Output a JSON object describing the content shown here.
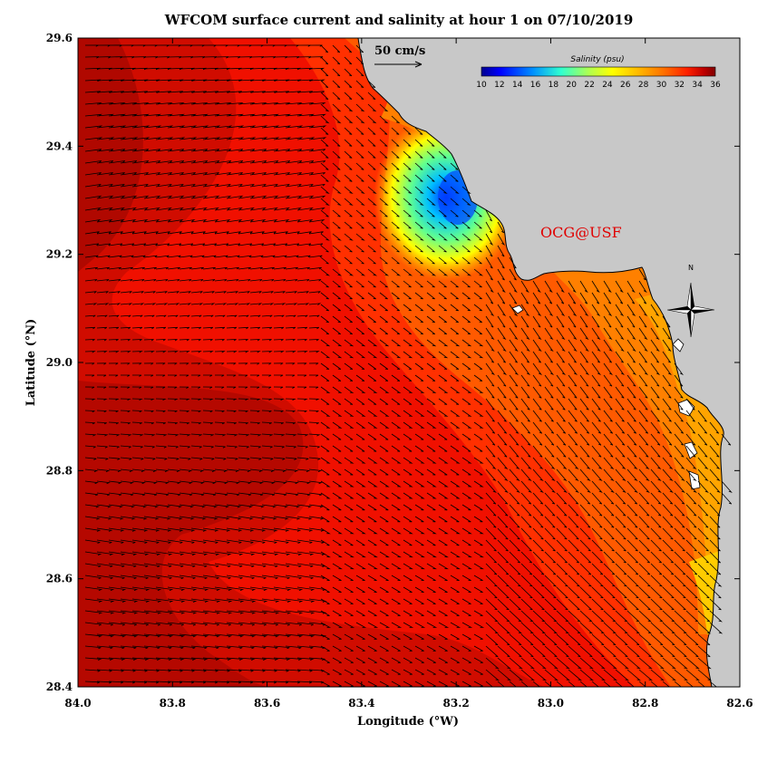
{
  "map": {
    "title": "WFCOM surface current and salinity at hour 1 on 07/10/2019",
    "xlabel": "Longitude (°W)",
    "ylabel": "Latitude (°N)",
    "x_ticks": [
      "84.0",
      "83.8",
      "83.6",
      "83.4",
      "83.2",
      "83.0",
      "82.8",
      "82.6"
    ],
    "y_ticks": [
      "29.6",
      "29.4",
      "29.2",
      "29.0",
      "28.8",
      "28.6",
      "28.4"
    ],
    "lon_range": [
      84.0,
      82.6
    ],
    "lat_range": [
      28.4,
      29.6
    ],
    "scale_vector_label": "50 cm/s",
    "credit": "OCG@USF",
    "credit_color": "#e00000",
    "north_label": "N",
    "land_color": "#c8c8c8",
    "colorbar": {
      "title": "Salinity (psu)",
      "ticks": [
        "10",
        "12",
        "14",
        "16",
        "18",
        "20",
        "22",
        "24",
        "26",
        "28",
        "30",
        "32",
        "34",
        "36"
      ],
      "range": [
        10,
        36
      ],
      "colors": [
        "#00008f",
        "#0000d0",
        "#0020ff",
        "#0060ff",
        "#00a0ff",
        "#00e0ff",
        "#40ffc0",
        "#80ff80",
        "#c0ff40",
        "#ffff00",
        "#ffd000",
        "#ffa000",
        "#ff7000",
        "#ff4000",
        "#ff1000",
        "#e00000",
        "#b00000",
        "#800000"
      ]
    },
    "icons": [
      "compass-rose-icon",
      "scale-arrow-icon"
    ]
  }
}
